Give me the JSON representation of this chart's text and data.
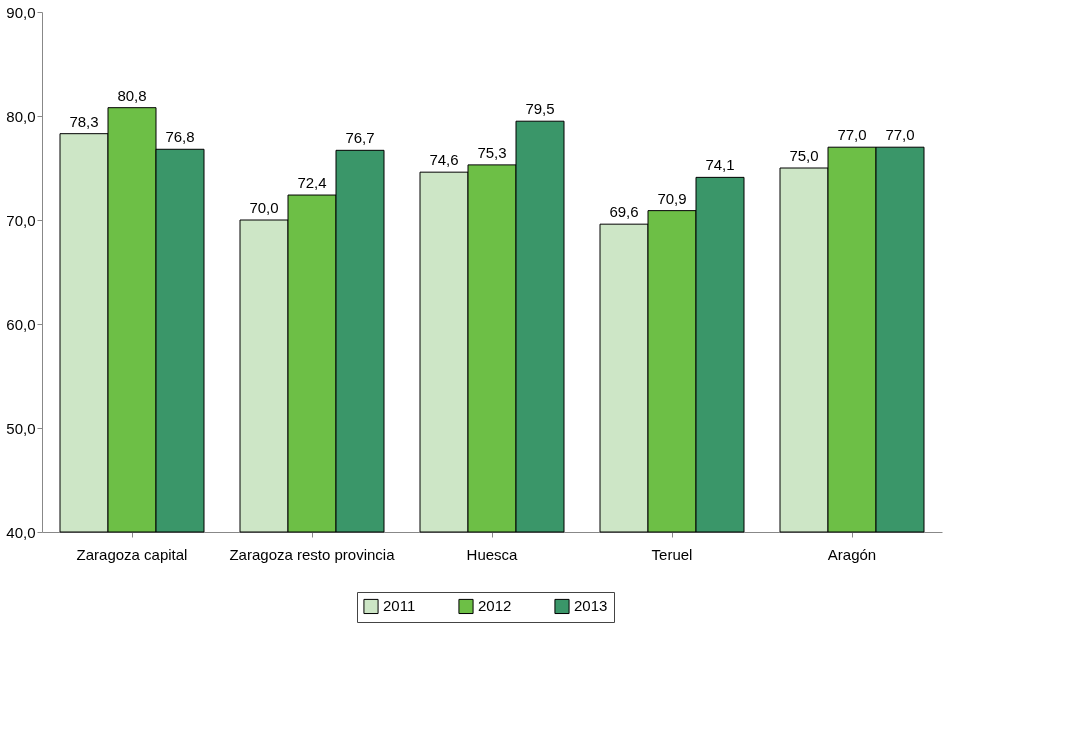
{
  "chart_data": {
    "type": "bar",
    "categories": [
      "Zaragoza capital",
      "Zaragoza resto provincia",
      "Huesca",
      "Teruel",
      "Aragón"
    ],
    "series": [
      {
        "name": "2011",
        "color": "#cde6c6",
        "values": [
          78.3,
          70.0,
          74.6,
          69.6,
          75.0
        ],
        "value_labels": [
          "78,3",
          "70,0",
          "74,6",
          "69,6",
          "75,0"
        ]
      },
      {
        "name": "2012",
        "color": "#6dbf46",
        "values": [
          80.8,
          72.4,
          75.3,
          70.9,
          77.0
        ],
        "value_labels": [
          "80,8",
          "72,4",
          "75,3",
          "70,9",
          "77,0"
        ]
      },
      {
        "name": "2013",
        "color": "#3a9669",
        "values": [
          76.8,
          76.7,
          79.5,
          74.1,
          77.0
        ],
        "value_labels": [
          "76,8",
          "76,7",
          "79,5",
          "74,1",
          "77,0"
        ]
      }
    ],
    "ylim": [
      40,
      90
    ],
    "yticks": [
      {
        "value": 40,
        "label": "40,0"
      },
      {
        "value": 50,
        "label": "50,0"
      },
      {
        "value": 60,
        "label": "60,0"
      },
      {
        "value": 70,
        "label": "70,0"
      },
      {
        "value": 80,
        "label": "80,0"
      },
      {
        "value": 90,
        "label": "90,0"
      }
    ],
    "grid": false,
    "legend": "bottom"
  }
}
